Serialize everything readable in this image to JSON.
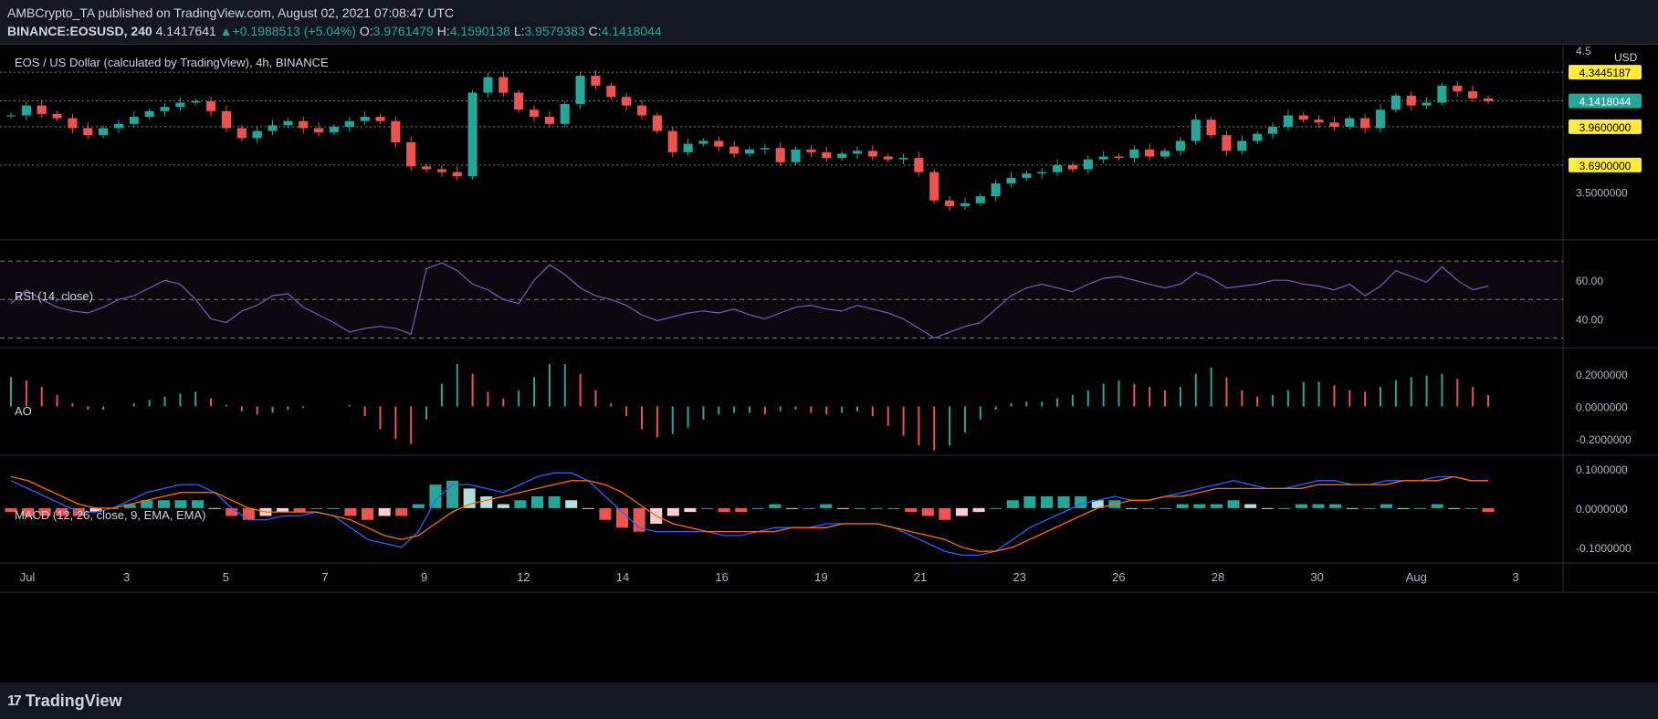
{
  "header": {
    "publisher": "AMBCrypto_TA",
    "published_text": " published on TradingView.com, August 02, 2021 07:08:47 UTC",
    "symbol": "BINANCE:EOSUSD, 240",
    "last_price": "4.1417641",
    "change_arrow": "▲",
    "change": "+0.1988513 (+5.04%)",
    "o_label": "O:",
    "o_value": "3.9761479",
    "h_label": "H:",
    "h_value": "4.1590138",
    "l_label": "L:",
    "l_value": "3.9579383",
    "c_label": "C:",
    "c_value": "4.1418044"
  },
  "footer": {
    "brand": "TradingView",
    "brand_mark": "17"
  },
  "colors": {
    "up": "#26a69a",
    "down": "#ef5350",
    "rsi": "#7e57c2",
    "macd": "#2962ff",
    "signal": "#ff6d00",
    "label": "#ffeb3b",
    "last": "#26a69a"
  },
  "chart_data": {
    "type": "candlestick",
    "title": "EOS / US Dollar (calculated by TradingView), 4h, BINANCE",
    "currency": "USD",
    "x_tick_labels": [
      "Jul",
      "3",
      "5",
      "7",
      "9",
      "12",
      "14",
      "16",
      "19",
      "21",
      "23",
      "26",
      "28",
      "30",
      "Aug",
      "3"
    ],
    "price_axis": {
      "ticks": [
        "4.5",
        "3.5000000"
      ],
      "ylim": [
        3.2,
        4.5
      ]
    },
    "price_levels": [
      {
        "value": 4.3445187,
        "label": "4.3445187",
        "style": "level"
      },
      {
        "value": 4.1418044,
        "label": "4.1418044",
        "style": "last"
      },
      {
        "value": 3.96,
        "label": "3.9600000",
        "style": "level"
      },
      {
        "value": 3.69,
        "label": "3.6900000",
        "style": "level"
      }
    ],
    "price_series": [
      4.04,
      4.11,
      4.05,
      4.02,
      3.95,
      3.9,
      3.95,
      3.98,
      4.03,
      4.07,
      4.1,
      4.13,
      4.14,
      4.07,
      3.95,
      3.88,
      3.93,
      3.97,
      4.0,
      3.95,
      3.92,
      3.96,
      4.0,
      4.03,
      4.0,
      3.85,
      3.68,
      3.66,
      3.64,
      3.61,
      4.2,
      4.31,
      4.2,
      4.08,
      4.03,
      3.98,
      4.12,
      4.32,
      4.25,
      4.17,
      4.11,
      4.04,
      3.93,
      3.78,
      3.84,
      3.86,
      3.82,
      3.77,
      3.8,
      3.81,
      3.71,
      3.8,
      3.78,
      3.74,
      3.77,
      3.79,
      3.75,
      3.73,
      3.74,
      3.64,
      3.44,
      3.4,
      3.42,
      3.47,
      3.56,
      3.6,
      3.63,
      3.64,
      3.69,
      3.66,
      3.73,
      3.75,
      3.74,
      3.8,
      3.75,
      3.79,
      3.86,
      4.01,
      3.9,
      3.79,
      3.86,
      3.91,
      3.96,
      4.04,
      4.01,
      3.99,
      3.96,
      4.02,
      3.95,
      4.08,
      4.18,
      4.11,
      4.13,
      4.25,
      4.21,
      4.16,
      4.14
    ],
    "rsi": {
      "label": "RSI (14, close)",
      "ticks": [
        "60.00",
        "40.00"
      ],
      "ylim": [
        25,
        80
      ],
      "bands": [
        70,
        50,
        30
      ],
      "values": [
        48,
        55,
        50,
        46,
        44,
        43,
        46,
        50,
        52,
        56,
        60,
        58,
        50,
        40,
        38,
        44,
        47,
        52,
        53,
        46,
        42,
        38,
        33,
        35,
        36,
        35,
        32,
        66,
        69,
        65,
        58,
        55,
        50,
        48,
        60,
        68,
        63,
        56,
        52,
        50,
        47,
        42,
        39,
        41,
        43,
        44,
        43,
        45,
        42,
        40,
        43,
        46,
        47,
        45,
        44,
        47,
        45,
        43,
        40,
        35,
        30,
        33,
        36,
        38,
        45,
        52,
        56,
        58,
        56,
        54,
        58,
        61,
        62,
        60,
        58,
        56,
        58,
        64,
        61,
        56,
        57,
        58,
        60,
        60,
        58,
        57,
        55,
        58,
        52,
        57,
        65,
        62,
        59,
        67,
        60,
        55,
        57
      ]
    },
    "ao": {
      "label": "AO",
      "ticks": [
        "0.2000000",
        "0.0000000",
        "-0.2000000"
      ],
      "ylim": [
        -0.3,
        0.35
      ],
      "values": [
        0.18,
        0.16,
        0.12,
        0.07,
        0.02,
        -0.02,
        -0.02,
        0.0,
        0.02,
        0.04,
        0.06,
        0.08,
        0.09,
        0.05,
        0.01,
        -0.03,
        -0.05,
        -0.04,
        -0.02,
        -0.01,
        0.0,
        0.0,
        0.01,
        -0.06,
        -0.14,
        -0.2,
        -0.23,
        -0.08,
        0.14,
        0.26,
        0.2,
        0.09,
        0.05,
        0.1,
        0.18,
        0.26,
        0.26,
        0.2,
        0.1,
        0.02,
        -0.06,
        -0.14,
        -0.19,
        -0.17,
        -0.13,
        -0.08,
        -0.05,
        -0.04,
        -0.04,
        -0.05,
        -0.03,
        -0.02,
        -0.04,
        -0.05,
        -0.04,
        -0.03,
        -0.06,
        -0.12,
        -0.18,
        -0.24,
        -0.27,
        -0.24,
        -0.16,
        -0.08,
        -0.02,
        0.02,
        0.03,
        0.03,
        0.05,
        0.07,
        0.1,
        0.14,
        0.16,
        0.14,
        0.12,
        0.1,
        0.12,
        0.2,
        0.24,
        0.18,
        0.1,
        0.06,
        0.07,
        0.1,
        0.15,
        0.15,
        0.13,
        0.1,
        0.09,
        0.12,
        0.16,
        0.18,
        0.19,
        0.2,
        0.17,
        0.12,
        0.07
      ]
    },
    "macd": {
      "label": "MACD (12, 26, close, 9, EMA, EMA)",
      "ticks": [
        "0.1000000",
        "0.0000000",
        "-0.1000000"
      ],
      "ylim": [
        -0.14,
        0.13
      ],
      "macd_line": [
        0.07,
        0.05,
        0.03,
        0.01,
        -0.01,
        -0.01,
        0.0,
        0.02,
        0.04,
        0.05,
        0.06,
        0.06,
        0.04,
        0.0,
        -0.03,
        -0.03,
        -0.02,
        -0.02,
        -0.01,
        -0.02,
        -0.05,
        -0.08,
        -0.09,
        -0.1,
        -0.06,
        0.02,
        0.06,
        0.06,
        0.05,
        0.04,
        0.06,
        0.08,
        0.09,
        0.09,
        0.07,
        0.03,
        -0.01,
        -0.05,
        -0.06,
        -0.06,
        -0.06,
        -0.06,
        -0.07,
        -0.07,
        -0.06,
        -0.05,
        -0.05,
        -0.05,
        -0.04,
        -0.04,
        -0.04,
        -0.04,
        -0.05,
        -0.07,
        -0.09,
        -0.11,
        -0.12,
        -0.12,
        -0.11,
        -0.08,
        -0.05,
        -0.03,
        -0.01,
        0.01,
        0.02,
        0.03,
        0.02,
        0.02,
        0.03,
        0.04,
        0.05,
        0.06,
        0.07,
        0.06,
        0.05,
        0.05,
        0.06,
        0.07,
        0.07,
        0.06,
        0.06,
        0.07,
        0.07,
        0.07,
        0.08,
        0.08,
        0.07,
        0.07
      ],
      "signal_line": [
        0.08,
        0.07,
        0.05,
        0.03,
        0.01,
        0.0,
        0.0,
        0.01,
        0.02,
        0.03,
        0.04,
        0.04,
        0.04,
        0.02,
        0.0,
        -0.01,
        -0.01,
        -0.01,
        -0.01,
        -0.02,
        -0.03,
        -0.05,
        -0.07,
        -0.08,
        -0.07,
        -0.04,
        -0.01,
        0.01,
        0.02,
        0.03,
        0.04,
        0.05,
        0.06,
        0.07,
        0.07,
        0.06,
        0.04,
        0.01,
        -0.02,
        -0.04,
        -0.05,
        -0.06,
        -0.06,
        -0.06,
        -0.06,
        -0.06,
        -0.05,
        -0.05,
        -0.05,
        -0.04,
        -0.04,
        -0.04,
        -0.05,
        -0.06,
        -0.07,
        -0.08,
        -0.1,
        -0.11,
        -0.11,
        -0.1,
        -0.08,
        -0.06,
        -0.04,
        -0.02,
        0.0,
        0.01,
        0.02,
        0.02,
        0.03,
        0.03,
        0.04,
        0.05,
        0.05,
        0.05,
        0.05,
        0.05,
        0.05,
        0.06,
        0.06,
        0.06,
        0.06,
        0.06,
        0.07,
        0.07,
        0.07,
        0.08,
        0.07,
        0.07
      ],
      "histogram": [
        -0.01,
        -0.02,
        -0.02,
        -0.02,
        -0.02,
        -0.01,
        0.0,
        0.01,
        0.02,
        0.02,
        0.02,
        0.02,
        0.0,
        -0.02,
        -0.03,
        -0.02,
        -0.01,
        -0.01,
        0.0,
        0.0,
        -0.02,
        -0.03,
        -0.02,
        -0.02,
        0.01,
        0.06,
        0.07,
        0.05,
        0.03,
        0.01,
        0.02,
        0.03,
        0.03,
        0.02,
        0.0,
        -0.03,
        -0.05,
        -0.06,
        -0.04,
        -0.02,
        -0.01,
        0.0,
        -0.01,
        -0.01,
        0.0,
        0.01,
        0.0,
        0.0,
        0.01,
        0.0,
        0.0,
        0.0,
        0.0,
        -0.01,
        -0.02,
        -0.03,
        -0.02,
        -0.01,
        0.0,
        0.02,
        0.03,
        0.03,
        0.03,
        0.03,
        0.02,
        0.02,
        0.0,
        0.0,
        0.0,
        0.01,
        0.01,
        0.01,
        0.02,
        0.01,
        0.0,
        0.0,
        0.01,
        0.01,
        0.01,
        0.0,
        0.0,
        0.01,
        0.0,
        0.0,
        0.01,
        0.0,
        0.0,
        -0.01
      ]
    }
  }
}
